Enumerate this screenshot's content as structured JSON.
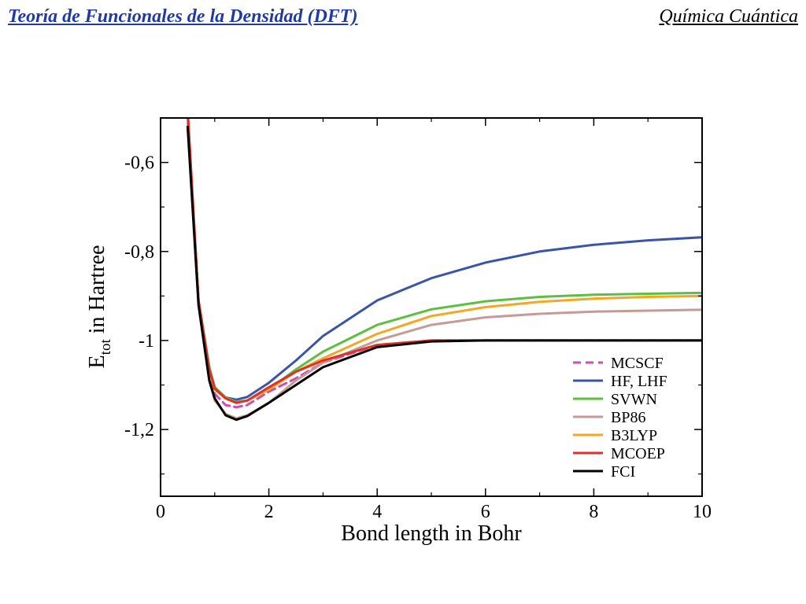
{
  "header": {
    "left_title": "Teoría de Funcionales de la Densidad (DFT)",
    "right_title": "Química Cuántica"
  },
  "chart_data": {
    "type": "line",
    "xlabel": "Bond length in Bohr",
    "ylabel_main": "E",
    "ylabel_sub": "tot",
    "ylabel_rest": " in Hartree",
    "xlim": [
      0,
      10
    ],
    "ylim": [
      -1.35,
      -0.5
    ],
    "x_ticks": [
      0,
      2,
      4,
      6,
      8,
      10
    ],
    "x_tick_labels": [
      "0",
      "2",
      "4",
      "6",
      "8",
      "10"
    ],
    "y_ticks": [
      -0.6,
      -0.8,
      -1.0,
      -1.2
    ],
    "y_tick_labels": [
      "-0,6",
      "-0,8",
      "-1",
      "-1,2"
    ],
    "grid": false,
    "legend_position": "bottom-right",
    "series": [
      {
        "name": "MCSCF",
        "color": "#c94fb0",
        "dashed": true,
        "x": [
          0.5,
          0.7,
          0.9,
          1.0,
          1.2,
          1.4,
          1.6,
          2.0,
          2.5,
          3.0,
          4.0,
          5.0,
          6.0,
          7.0,
          8.0,
          9.0,
          10.0
        ],
        "y": [
          -0.5,
          -0.91,
          -1.07,
          -1.12,
          -1.145,
          -1.15,
          -1.145,
          -1.115,
          -1.085,
          -1.05,
          -1.01,
          -1.0,
          -1.0,
          -1.0,
          -1.0,
          -1.0,
          -1.0
        ]
      },
      {
        "name": "HF, LHF",
        "color": "#3a55a8",
        "dashed": false,
        "x": [
          0.5,
          0.7,
          0.9,
          1.0,
          1.2,
          1.4,
          1.6,
          2.0,
          2.5,
          3.0,
          4.0,
          5.0,
          6.0,
          7.0,
          8.0,
          9.0,
          10.0
        ],
        "y": [
          -0.5,
          -0.91,
          -1.06,
          -1.105,
          -1.128,
          -1.133,
          -1.127,
          -1.095,
          -1.045,
          -0.99,
          -0.91,
          -0.86,
          -0.825,
          -0.8,
          -0.785,
          -0.775,
          -0.768
        ]
      },
      {
        "name": "SVWN",
        "color": "#5cbf3d",
        "dashed": false,
        "x": [
          0.5,
          0.7,
          0.9,
          1.0,
          1.2,
          1.4,
          1.6,
          2.0,
          2.5,
          3.0,
          4.0,
          5.0,
          6.0,
          7.0,
          8.0,
          9.0,
          10.0
        ],
        "y": [
          -0.5,
          -0.91,
          -1.06,
          -1.105,
          -1.128,
          -1.138,
          -1.135,
          -1.11,
          -1.065,
          -1.025,
          -0.965,
          -0.93,
          -0.912,
          -0.902,
          -0.897,
          -0.895,
          -0.893
        ]
      },
      {
        "name": "BP86",
        "color": "#c79a96",
        "dashed": false,
        "x": [
          0.5,
          0.7,
          0.9,
          1.0,
          1.2,
          1.4,
          1.6,
          2.0,
          2.5,
          3.0,
          4.0,
          5.0,
          6.0,
          7.0,
          8.0,
          9.0,
          10.0
        ],
        "y": [
          -0.5,
          -0.92,
          -1.09,
          -1.135,
          -1.165,
          -1.175,
          -1.168,
          -1.14,
          -1.09,
          -1.05,
          -1.0,
          -0.965,
          -0.948,
          -0.94,
          -0.935,
          -0.933,
          -0.931
        ]
      },
      {
        "name": "B3LYP",
        "color": "#f5a623",
        "dashed": false,
        "x": [
          0.5,
          0.7,
          0.9,
          1.0,
          1.2,
          1.4,
          1.6,
          2.0,
          2.5,
          3.0,
          4.0,
          5.0,
          6.0,
          7.0,
          8.0,
          9.0,
          10.0
        ],
        "y": [
          -0.5,
          -0.91,
          -1.07,
          -1.11,
          -1.13,
          -1.14,
          -1.135,
          -1.11,
          -1.07,
          -1.04,
          -0.985,
          -0.945,
          -0.925,
          -0.913,
          -0.906,
          -0.902,
          -0.9
        ]
      },
      {
        "name": "MCOEP",
        "color": "#e0302a",
        "dashed": false,
        "x": [
          0.5,
          0.7,
          0.9,
          1.0,
          1.2,
          1.4,
          1.6,
          2.0,
          2.5,
          3.0,
          4.0,
          5.0,
          6.0,
          7.0,
          8.0,
          9.0,
          10.0
        ],
        "y": [
          -0.48,
          -0.91,
          -1.065,
          -1.108,
          -1.13,
          -1.14,
          -1.135,
          -1.105,
          -1.07,
          -1.045,
          -1.01,
          -1.0,
          -1.0,
          -1.0,
          -1.0,
          -1.0,
          -1.0
        ]
      },
      {
        "name": "FCI",
        "color": "#000000",
        "dashed": false,
        "x": [
          0.5,
          0.7,
          0.9,
          1.0,
          1.2,
          1.4,
          1.6,
          2.0,
          2.5,
          3.0,
          4.0,
          5.0,
          6.0,
          7.0,
          8.0,
          9.0,
          10.0
        ],
        "y": [
          -0.52,
          -0.92,
          -1.09,
          -1.13,
          -1.168,
          -1.178,
          -1.17,
          -1.14,
          -1.1,
          -1.06,
          -1.015,
          -1.002,
          -1.0,
          -1.0,
          -1.0,
          -1.0,
          -1.0
        ]
      }
    ]
  }
}
